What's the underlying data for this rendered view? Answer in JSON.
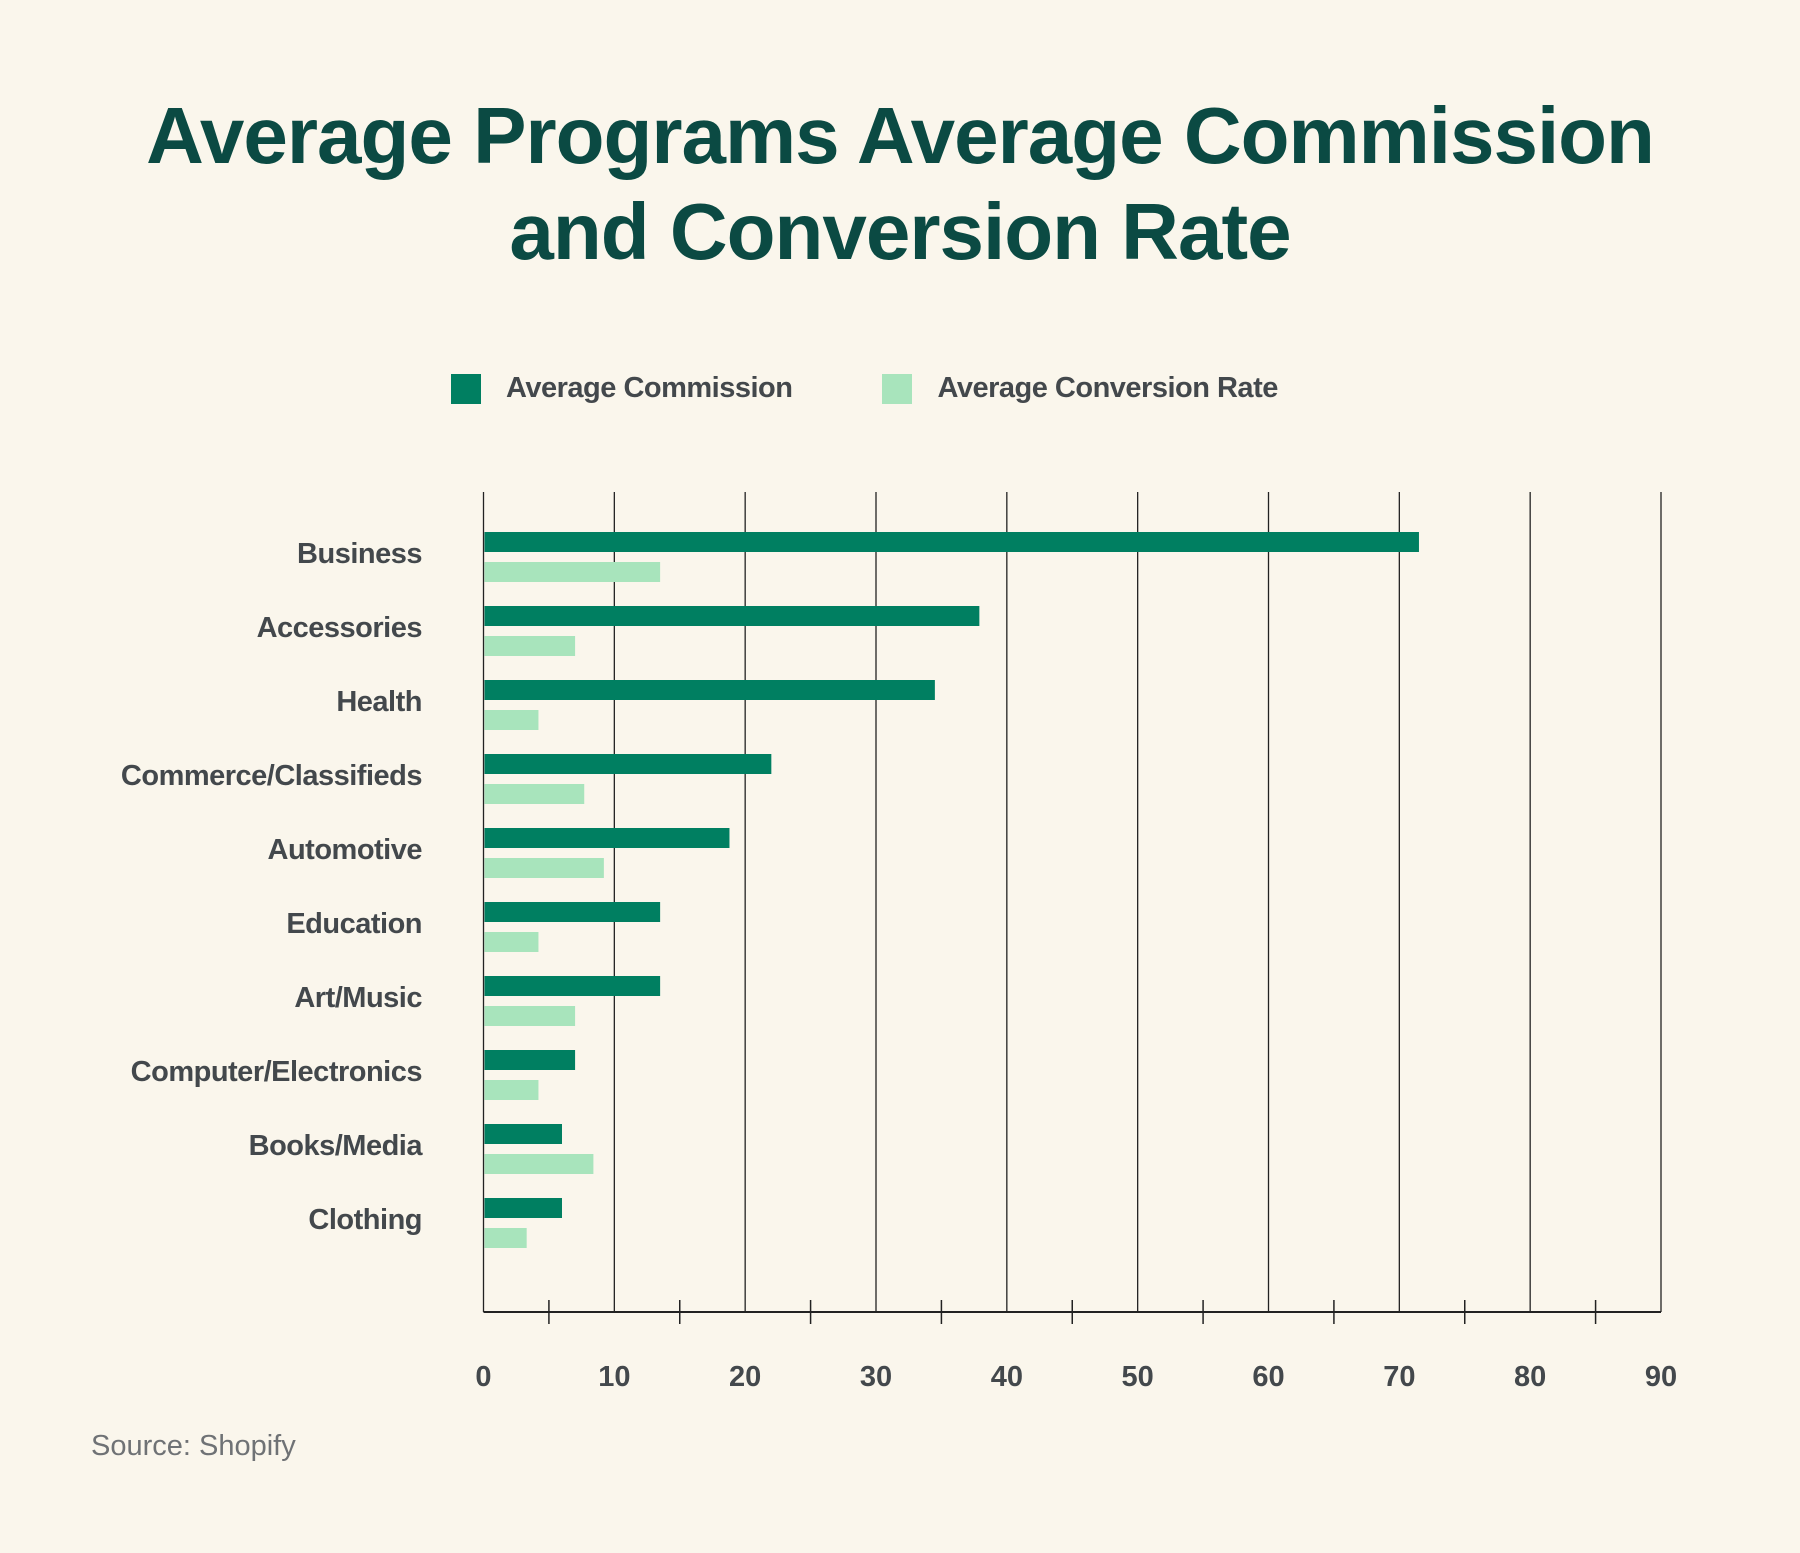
{
  "title_line1": "Average Programs Average Commission",
  "title_line2": "and Conversion Rate",
  "source": "Source: Shopify",
  "colors": {
    "commission": "#007f61",
    "conversion": "#a8e4bc",
    "title": "#0b4a43",
    "text": "#43484c",
    "background": "#faf6ec"
  },
  "chart_data": {
    "type": "bar",
    "orientation": "horizontal",
    "title": "Average Programs Average Commission and Conversion Rate",
    "categories": [
      "Business",
      "Accessories",
      "Health",
      "Commerce/Classifieds",
      "Automotive",
      "Education",
      "Art/Music",
      "Computer/Electronics",
      "Books/Media",
      "Clothing"
    ],
    "series": [
      {
        "name": "Average Commission",
        "color": "#007f61",
        "values": [
          71.5,
          37.9,
          34.5,
          22.0,
          18.8,
          13.5,
          13.5,
          7.0,
          6.0,
          6.0
        ]
      },
      {
        "name": "Average Conversion Rate",
        "color": "#a8e4bc",
        "values": [
          13.5,
          7.0,
          4.2,
          7.7,
          9.2,
          4.2,
          7.0,
          4.2,
          8.4,
          3.3
        ]
      }
    ],
    "xlim": [
      0,
      90
    ],
    "xticks": [
      "0",
      "10",
      "20",
      "30",
      "40",
      "50",
      "60",
      "70",
      "80",
      "90"
    ],
    "grid": true,
    "legend": "top"
  }
}
